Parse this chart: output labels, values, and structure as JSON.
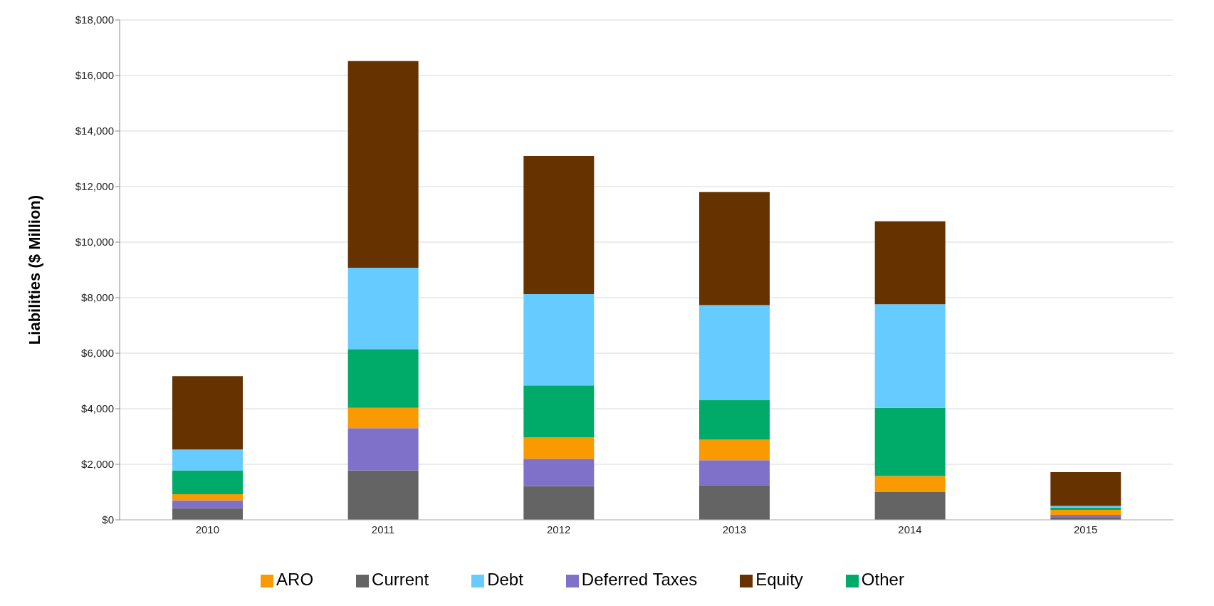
{
  "chart_data": {
    "type": "bar",
    "stacked": true,
    "ylabel": "Liabilities ($ Million)",
    "categories": [
      "2010",
      "2011",
      "2012",
      "2013",
      "2014",
      "2015"
    ],
    "series": [
      {
        "name": "Current",
        "color": "#646464",
        "values": [
          420,
          1780,
          1220,
          1250,
          1000,
          80
        ]
      },
      {
        "name": "Deferred Taxes",
        "color": "#7f71c9",
        "values": [
          280,
          1520,
          980,
          900,
          0,
          100
        ]
      },
      {
        "name": "ARO",
        "color": "#f99a00",
        "values": [
          220,
          730,
          770,
          750,
          580,
          180
        ]
      },
      {
        "name": "Other",
        "color": "#00ab6a",
        "values": [
          860,
          2120,
          1870,
          1420,
          2450,
          80
        ]
      },
      {
        "name": "Debt",
        "color": "#66cbff",
        "values": [
          750,
          2930,
          3290,
          3410,
          3730,
          60
        ]
      },
      {
        "name": "Equity",
        "color": "#663300",
        "values": [
          2640,
          7440,
          4970,
          4070,
          2990,
          1220
        ]
      }
    ],
    "ylim": [
      0,
      18000
    ],
    "yticks": [
      {
        "value": 0,
        "label": "$0"
      },
      {
        "value": 2000,
        "label": "$2,000"
      },
      {
        "value": 4000,
        "label": "$4,000"
      },
      {
        "value": 6000,
        "label": "$6,000"
      },
      {
        "value": 8000,
        "label": "$8,000"
      },
      {
        "value": 10000,
        "label": "$10,000"
      },
      {
        "value": 12000,
        "label": "$12,000"
      },
      {
        "value": 14000,
        "label": "$14,000"
      },
      {
        "value": 16000,
        "label": "$16,000"
      },
      {
        "value": 18000,
        "label": "$18,000"
      }
    ],
    "grid": "y",
    "legend": "bottom"
  }
}
